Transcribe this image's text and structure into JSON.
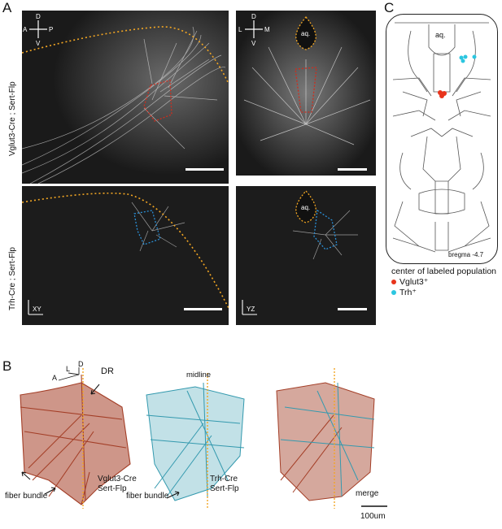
{
  "panels": {
    "a_letter": "A",
    "b_letter": "B",
    "c_letter": "C"
  },
  "panel_a": {
    "row1_label": "Vglut3-Cre ; Sert-Flp",
    "row2_label": "Trh-Cre ; Sert-Flp",
    "aq_label": "aq.",
    "compass_sagittal": {
      "d": "D",
      "v": "V",
      "a": "A",
      "p": "P"
    },
    "compass_coronal": {
      "d": "D",
      "v": "V",
      "l": "L",
      "m": "M"
    },
    "axis_xy": "XY",
    "axis_yz": "YZ"
  },
  "panel_c": {
    "aq_label": "aq.",
    "bregma": "bregma -4.7",
    "legend_title": "center of labeled population",
    "legend": [
      {
        "label": "Vglut3⁺",
        "color": "#e8341c"
      },
      {
        "label": "Trh⁺",
        "color": "#2cc6e0"
      }
    ]
  },
  "panel_b": {
    "axes": {
      "d": "D",
      "l": "L",
      "a": "A"
    },
    "dr": "DR",
    "midline": "midline",
    "fiber_bundle_1": "fiber bundle",
    "fiber_bundle_2": "fiber bundle",
    "vglut_label_1": "Vglut3-Cre",
    "vglut_label_2": "Sert-Flp",
    "trh_label_1": "Trh-Cre",
    "trh_label_2": "Sert-Flp",
    "merge": "merge",
    "scale": "100um"
  },
  "colors": {
    "vglut": "#9a2a10",
    "trh": "#1e8fa6",
    "dashed_orange": "#f2a623",
    "dashed_red": "#d02c1c",
    "dashed_blue": "#2a8fd6"
  }
}
